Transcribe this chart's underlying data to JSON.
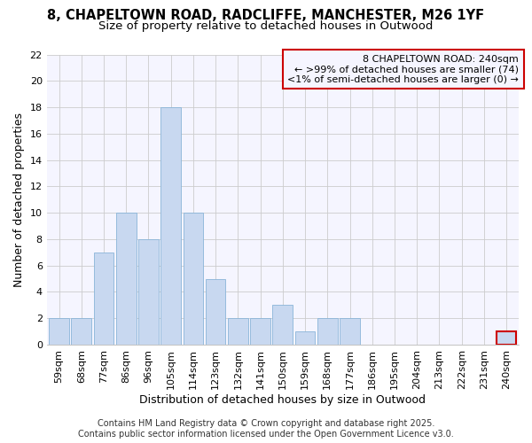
{
  "title_line1": "8, CHAPELTOWN ROAD, RADCLIFFE, MANCHESTER, M26 1YF",
  "title_line2": "Size of property relative to detached houses in Outwood",
  "xlabel": "Distribution of detached houses by size in Outwood",
  "ylabel": "Number of detached properties",
  "categories": [
    "59sqm",
    "68sqm",
    "77sqm",
    "86sqm",
    "96sqm",
    "105sqm",
    "114sqm",
    "123sqm",
    "132sqm",
    "141sqm",
    "150sqm",
    "159sqm",
    "168sqm",
    "177sqm",
    "186sqm",
    "195sqm",
    "204sqm",
    "213sqm",
    "222sqm",
    "231sqm",
    "240sqm"
  ],
  "values": [
    2,
    2,
    7,
    10,
    8,
    18,
    10,
    5,
    2,
    2,
    3,
    1,
    2,
    2,
    0,
    0,
    0,
    0,
    0,
    0,
    1
  ],
  "bar_color": "#c8d8f0",
  "bar_edge_color": "#8ab4d8",
  "highlight_bar_index": 20,
  "highlight_bar_edge_color": "#cc0000",
  "ylim": [
    0,
    22
  ],
  "yticks": [
    0,
    2,
    4,
    6,
    8,
    10,
    12,
    14,
    16,
    18,
    20,
    22
  ],
  "grid_color": "#cccccc",
  "background_color": "#ffffff",
  "plot_bg_color": "#f5f5ff",
  "legend_text_line1": "8 CHAPELTOWN ROAD: 240sqm",
  "legend_text_line2": "← >99% of detached houses are smaller (74)",
  "legend_text_line3": "<1% of semi-detached houses are larger (0) →",
  "legend_border_color": "#cc0000",
  "footer_text": "Contains HM Land Registry data © Crown copyright and database right 2025.\nContains public sector information licensed under the Open Government Licence v3.0.",
  "title_fontsize": 10.5,
  "subtitle_fontsize": 9.5,
  "axis_label_fontsize": 9,
  "tick_fontsize": 8,
  "legend_fontsize": 8,
  "footer_fontsize": 7
}
